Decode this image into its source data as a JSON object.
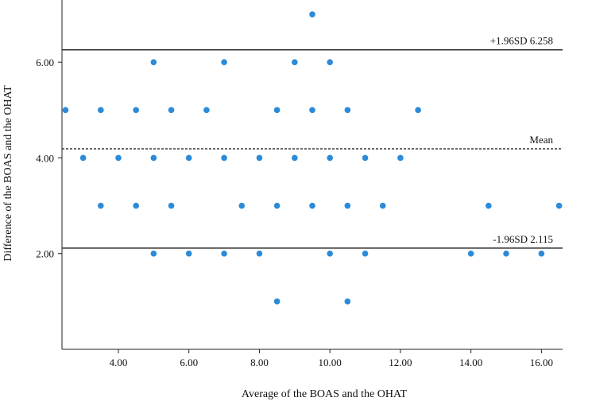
{
  "chart_data": {
    "type": "scatter",
    "xlabel": "Average of the BOAS and the OHAT",
    "ylabel": "Difference of the BOAS and the OHAT",
    "xlim": [
      2.4,
      16.6
    ],
    "ylim": [
      0,
      7.3
    ],
    "x_ticks": [
      4,
      6,
      8,
      10,
      12,
      14,
      16
    ],
    "x_tick_labels": [
      "4.00",
      "6.00",
      "8.00",
      "10.00",
      "12.00",
      "14.00",
      "16.00"
    ],
    "y_ticks": [
      2,
      4,
      6
    ],
    "y_tick_labels": [
      "2.00",
      "4.00",
      "6.00"
    ],
    "grid": false,
    "point_color": "#2B8BD8",
    "reference_lines": [
      {
        "label": "+1.96SD 6.258",
        "value": 6.258,
        "style": "solid"
      },
      {
        "label": "Mean",
        "value": 4.19,
        "style": "dashed"
      },
      {
        "label": "-1.96SD 2.115",
        "value": 2.115,
        "style": "solid"
      }
    ],
    "points": [
      {
        "x": 9.5,
        "y": 7
      },
      {
        "x": 5.0,
        "y": 6
      },
      {
        "x": 7.0,
        "y": 6
      },
      {
        "x": 9.0,
        "y": 6
      },
      {
        "x": 10.0,
        "y": 6
      },
      {
        "x": 2.5,
        "y": 5
      },
      {
        "x": 3.5,
        "y": 5
      },
      {
        "x": 4.5,
        "y": 5
      },
      {
        "x": 5.5,
        "y": 5
      },
      {
        "x": 6.5,
        "y": 5
      },
      {
        "x": 8.5,
        "y": 5
      },
      {
        "x": 9.5,
        "y": 5
      },
      {
        "x": 10.5,
        "y": 5
      },
      {
        "x": 12.5,
        "y": 5
      },
      {
        "x": 3.0,
        "y": 4
      },
      {
        "x": 4.0,
        "y": 4
      },
      {
        "x": 5.0,
        "y": 4
      },
      {
        "x": 6.0,
        "y": 4
      },
      {
        "x": 7.0,
        "y": 4
      },
      {
        "x": 8.0,
        "y": 4
      },
      {
        "x": 9.0,
        "y": 4
      },
      {
        "x": 10.0,
        "y": 4
      },
      {
        "x": 11.0,
        "y": 4
      },
      {
        "x": 12.0,
        "y": 4
      },
      {
        "x": 3.5,
        "y": 3
      },
      {
        "x": 4.5,
        "y": 3
      },
      {
        "x": 5.5,
        "y": 3
      },
      {
        "x": 7.5,
        "y": 3
      },
      {
        "x": 8.5,
        "y": 3
      },
      {
        "x": 9.5,
        "y": 3
      },
      {
        "x": 10.5,
        "y": 3
      },
      {
        "x": 11.5,
        "y": 3
      },
      {
        "x": 14.5,
        "y": 3
      },
      {
        "x": 16.5,
        "y": 3
      },
      {
        "x": 5.0,
        "y": 2
      },
      {
        "x": 6.0,
        "y": 2
      },
      {
        "x": 7.0,
        "y": 2
      },
      {
        "x": 8.0,
        "y": 2
      },
      {
        "x": 10.0,
        "y": 2
      },
      {
        "x": 11.0,
        "y": 2
      },
      {
        "x": 14.0,
        "y": 2
      },
      {
        "x": 15.0,
        "y": 2
      },
      {
        "x": 16.0,
        "y": 2
      },
      {
        "x": 8.5,
        "y": 1
      },
      {
        "x": 10.5,
        "y": 1
      }
    ]
  }
}
